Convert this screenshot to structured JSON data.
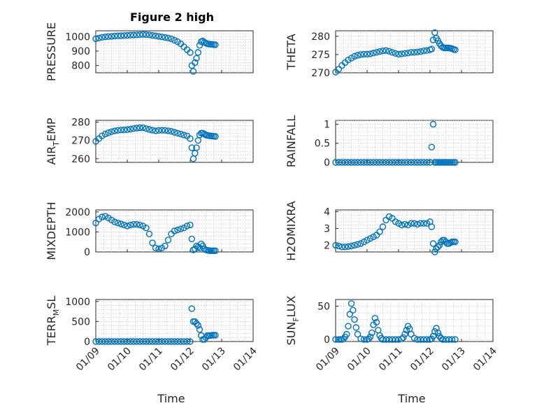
{
  "chart_data": {
    "type": "scatter",
    "title": "Figure 2 high",
    "marker_color": "#0072BD",
    "marker": "open-circle",
    "grid": true,
    "x_tick_labels": [
      "01/09",
      "01/10",
      "01/11",
      "01/12",
      "01/13",
      "01/14"
    ],
    "xlabel": "Time",
    "panels": [
      {
        "id": "pressure",
        "ylabel": "PRESSURE",
        "ylabel_sub": "",
        "ylabel_after": "",
        "ylim": [
          750,
          1040
        ],
        "yticks": [
          800,
          900,
          1000
        ],
        "x": [
          0,
          0.1,
          0.2,
          0.3,
          0.4,
          0.5,
          0.6,
          0.7,
          0.8,
          0.9,
          1.0,
          1.1,
          1.2,
          1.3,
          1.4,
          1.5,
          1.6,
          1.7,
          1.8,
          1.9,
          2.0,
          2.1,
          2.2,
          2.3,
          2.4,
          2.5,
          2.6,
          2.7,
          2.8,
          2.9,
          3.0,
          3.05,
          3.1,
          3.15,
          3.2,
          3.25,
          3.3,
          3.35,
          3.4,
          3.45,
          3.5,
          3.55,
          3.6,
          3.65,
          3.7,
          3.75,
          3.8
        ],
        "y": [
          985,
          990,
          995,
          998,
          1000,
          1002,
          1004,
          1005,
          1006,
          1007,
          1008,
          1010,
          1011,
          1012,
          1013,
          1015,
          1014,
          1012,
          1008,
          1005,
          1002,
          998,
          994,
          990,
          985,
          975,
          965,
          950,
          930,
          910,
          890,
          800,
          760,
          820,
          850,
          890,
          940,
          965,
          970,
          960,
          955,
          950,
          948,
          947,
          946,
          945,
          944
        ]
      },
      {
        "id": "theta",
        "ylabel": "THETA",
        "ylabel_sub": "",
        "ylabel_after": "",
        "ylim": [
          270,
          281.5
        ],
        "yticks": [
          270,
          275,
          280
        ],
        "x": [
          0,
          0.1,
          0.2,
          0.3,
          0.4,
          0.5,
          0.6,
          0.7,
          0.8,
          0.9,
          1.0,
          1.1,
          1.2,
          1.3,
          1.4,
          1.5,
          1.6,
          1.7,
          1.8,
          1.9,
          2.0,
          2.1,
          2.2,
          2.3,
          2.4,
          2.5,
          2.6,
          2.7,
          2.8,
          2.9,
          3.0,
          3.05,
          3.1,
          3.15,
          3.2,
          3.25,
          3.3,
          3.35,
          3.4,
          3.45,
          3.5,
          3.55,
          3.6,
          3.65,
          3.7,
          3.75,
          3.8
        ],
        "y": [
          270.2,
          271,
          272,
          272.8,
          273.5,
          274,
          274.5,
          274.8,
          275,
          275.1,
          275.1,
          275.2,
          275.4,
          275.6,
          275.8,
          276,
          276.1,
          275.9,
          275.6,
          275.3,
          275.1,
          275.2,
          275.3,
          275.4,
          275.6,
          275.6,
          275.7,
          275.8,
          276,
          276.1,
          276.3,
          276.5,
          279,
          281,
          279.5,
          278.8,
          278,
          277.4,
          277,
          276.8,
          276.8,
          276.8,
          276.8,
          276.7,
          276.6,
          276.4,
          276.3
        ]
      },
      {
        "id": "air-temp",
        "ylabel": "AIR",
        "ylabel_sub": "T",
        "ylabel_after": "EMP",
        "ylim": [
          258,
          281
        ],
        "yticks": [
          260,
          270,
          280
        ],
        "x": [
          0,
          0.1,
          0.2,
          0.3,
          0.4,
          0.5,
          0.6,
          0.7,
          0.8,
          0.9,
          1.0,
          1.1,
          1.2,
          1.3,
          1.4,
          1.5,
          1.6,
          1.7,
          1.8,
          1.9,
          2.0,
          2.1,
          2.2,
          2.3,
          2.4,
          2.5,
          2.6,
          2.7,
          2.8,
          2.9,
          3.0,
          3.05,
          3.1,
          3.15,
          3.2,
          3.25,
          3.3,
          3.35,
          3.4,
          3.45,
          3.5,
          3.55,
          3.6,
          3.65,
          3.7,
          3.75,
          3.8
        ],
        "y": [
          269.5,
          271,
          272.5,
          273.5,
          274.2,
          274.8,
          275.2,
          275.5,
          275.7,
          275.8,
          275.9,
          276.2,
          276.5,
          276.8,
          277,
          277,
          276.5,
          276,
          275.6,
          275.3,
          275.5,
          275.6,
          275.5,
          275.3,
          275,
          274.5,
          274,
          273.5,
          273,
          272.5,
          271,
          266,
          260,
          263,
          266,
          270,
          273,
          274,
          274,
          273.5,
          273,
          272.8,
          272.6,
          272.5,
          272.4,
          272.3,
          272.2
        ]
      },
      {
        "id": "rainfall",
        "ylabel": "RAINFALL",
        "ylabel_sub": "",
        "ylabel_after": "",
        "ylim": [
          0,
          1.1
        ],
        "yticks": [
          0,
          0.5,
          1
        ],
        "x": [
          0,
          0.1,
          0.2,
          0.3,
          0.4,
          0.5,
          0.6,
          0.7,
          0.8,
          0.9,
          1.0,
          1.1,
          1.2,
          1.3,
          1.4,
          1.5,
          1.6,
          1.7,
          1.8,
          1.9,
          2.0,
          2.1,
          2.2,
          2.3,
          2.4,
          2.5,
          2.6,
          2.7,
          2.8,
          2.9,
          3.0,
          3.05,
          3.1,
          3.15,
          3.2,
          3.25,
          3.3,
          3.35,
          3.4,
          3.45,
          3.5,
          3.55,
          3.6,
          3.65,
          3.7,
          3.75,
          3.8
        ],
        "y": [
          0,
          0,
          0,
          0,
          0,
          0,
          0,
          0,
          0,
          0,
          0,
          0,
          0,
          0,
          0,
          0,
          0,
          0,
          0,
          0,
          0,
          0,
          0,
          0,
          0,
          0,
          0,
          0,
          0,
          0,
          0,
          0.4,
          1,
          0,
          0,
          0,
          0,
          0,
          0,
          0,
          0,
          0,
          0,
          0,
          0,
          0,
          0
        ]
      },
      {
        "id": "mixdepth",
        "ylabel": "MIXDEPTH",
        "ylabel_sub": "",
        "ylabel_after": "",
        "ylim": [
          0,
          2100
        ],
        "yticks": [
          0,
          1000,
          2000
        ],
        "x": [
          0,
          0.1,
          0.2,
          0.3,
          0.4,
          0.5,
          0.6,
          0.7,
          0.8,
          0.9,
          1.0,
          1.1,
          1.2,
          1.3,
          1.4,
          1.5,
          1.6,
          1.7,
          1.8,
          1.9,
          2.0,
          2.1,
          2.2,
          2.3,
          2.4,
          2.5,
          2.6,
          2.7,
          2.8,
          2.9,
          3.0,
          3.05,
          3.1,
          3.15,
          3.2,
          3.25,
          3.3,
          3.35,
          3.4,
          3.45,
          3.5,
          3.55,
          3.6,
          3.65,
          3.7,
          3.75,
          3.8
        ],
        "y": [
          1450,
          1650,
          1750,
          1780,
          1700,
          1600,
          1500,
          1450,
          1400,
          1350,
          1300,
          1350,
          1380,
          1380,
          1350,
          1300,
          1200,
          900,
          450,
          200,
          150,
          200,
          300,
          600,
          900,
          1050,
          1100,
          1150,
          1200,
          1300,
          1350,
          650,
          100,
          150,
          300,
          250,
          200,
          400,
          300,
          150,
          100,
          80,
          70,
          60,
          60,
          60,
          60
        ]
      },
      {
        "id": "h2omixra",
        "ylabel": "H2OMIXRA",
        "ylabel_sub": "",
        "ylabel_after": "",
        "ylim": [
          1.6,
          4.1
        ],
        "yticks": [
          2,
          3,
          4
        ],
        "x": [
          0,
          0.1,
          0.2,
          0.3,
          0.4,
          0.5,
          0.6,
          0.7,
          0.8,
          0.9,
          1.0,
          1.1,
          1.2,
          1.3,
          1.4,
          1.5,
          1.6,
          1.7,
          1.8,
          1.9,
          2.0,
          2.1,
          2.2,
          2.3,
          2.4,
          2.5,
          2.6,
          2.7,
          2.8,
          2.9,
          3.0,
          3.05,
          3.1,
          3.15,
          3.2,
          3.25,
          3.3,
          3.35,
          3.4,
          3.45,
          3.5,
          3.55,
          3.6,
          3.65,
          3.7,
          3.75,
          3.8
        ],
        "y": [
          2,
          1.95,
          1.9,
          1.9,
          1.92,
          1.95,
          2,
          2.05,
          2.1,
          2.2,
          2.3,
          2.4,
          2.5,
          2.6,
          2.8,
          3.1,
          3.5,
          3.7,
          3.6,
          3.4,
          3.3,
          3.2,
          3.25,
          3.2,
          3.3,
          3.3,
          3.25,
          3.3,
          3.3,
          3.3,
          3.4,
          3.1,
          2.1,
          1.6,
          1.8,
          1.9,
          2,
          2.2,
          2.3,
          2.3,
          2.2,
          2.1,
          2.1,
          2.15,
          2.2,
          2.2,
          2.2
        ]
      },
      {
        "id": "terr-msl",
        "ylabel": "TERR",
        "ylabel_sub": "M",
        "ylabel_after": "SL",
        "ylim": [
          0,
          1050
        ],
        "yticks": [
          0,
          500,
          1000
        ],
        "x": [
          0,
          0.1,
          0.2,
          0.3,
          0.4,
          0.5,
          0.6,
          0.7,
          0.8,
          0.9,
          1.0,
          1.1,
          1.2,
          1.3,
          1.4,
          1.5,
          1.6,
          1.7,
          1.8,
          1.9,
          2.0,
          2.1,
          2.2,
          2.3,
          2.4,
          2.5,
          2.6,
          2.7,
          2.8,
          2.9,
          3.0,
          3.05,
          3.1,
          3.15,
          3.2,
          3.25,
          3.3,
          3.35,
          3.4,
          3.45,
          3.5,
          3.55,
          3.6,
          3.65,
          3.7,
          3.75,
          3.8
        ],
        "y": [
          0,
          0,
          0,
          0,
          0,
          0,
          0,
          0,
          0,
          0,
          0,
          0,
          0,
          0,
          0,
          0,
          0,
          0,
          0,
          0,
          0,
          0,
          0,
          0,
          0,
          0,
          0,
          0,
          0,
          0,
          0,
          820,
          500,
          500,
          450,
          400,
          300,
          150,
          50,
          50,
          100,
          150,
          150,
          150,
          160,
          160,
          160
        ]
      },
      {
        "id": "sun-flux",
        "ylabel": "SUN",
        "ylabel_sub": "F",
        "ylabel_after": "LUX",
        "ylim": [
          -3,
          60
        ],
        "yticks": [
          0,
          50
        ],
        "x": [
          0,
          0.1,
          0.15,
          0.2,
          0.25,
          0.3,
          0.35,
          0.4,
          0.45,
          0.5,
          0.55,
          0.6,
          0.65,
          0.7,
          0.8,
          0.9,
          1.0,
          1.05,
          1.1,
          1.15,
          1.2,
          1.25,
          1.3,
          1.35,
          1.4,
          1.45,
          1.5,
          1.6,
          1.7,
          1.8,
          1.9,
          2.0,
          2.1,
          2.15,
          2.2,
          2.25,
          2.3,
          2.35,
          2.4,
          2.5,
          2.6,
          2.7,
          2.8,
          2.9,
          3.0,
          3.05,
          3.1,
          3.15,
          3.2,
          3.25,
          3.3,
          3.35,
          3.4,
          3.5,
          3.6,
          3.7,
          3.8
        ],
        "y": [
          0,
          0,
          0,
          0,
          1,
          4,
          8,
          20,
          38,
          54,
          44,
          30,
          18,
          8,
          1,
          0,
          0,
          1,
          4,
          10,
          22,
          32,
          26,
          14,
          6,
          2,
          0,
          0,
          0,
          0,
          0,
          0,
          1,
          3,
          8,
          14,
          20,
          16,
          8,
          2,
          0,
          0,
          0,
          0,
          0,
          1,
          5,
          12,
          17,
          10,
          5,
          2,
          0,
          0,
          0,
          0,
          0
        ]
      }
    ]
  }
}
